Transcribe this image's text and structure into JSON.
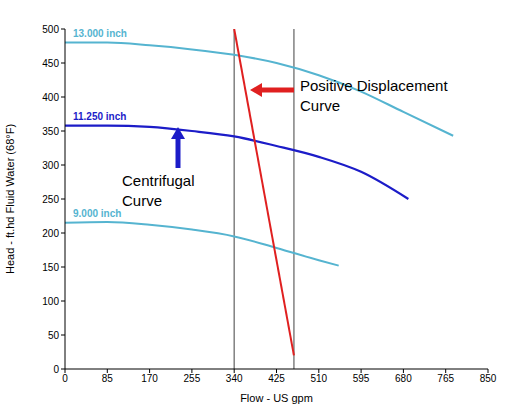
{
  "chart_data": {
    "type": "line",
    "x_label": "Flow - US gpm",
    "y_label": "Head - ft.hd Fluid Water (68°F)",
    "xlim": [
      0,
      850
    ],
    "xticks": [
      0,
      85,
      170,
      255,
      340,
      425,
      510,
      595,
      680,
      765,
      850
    ],
    "ylim": [
      0,
      500
    ],
    "yticks": [
      0,
      50,
      100,
      150,
      200,
      250,
      300,
      350,
      400,
      450,
      500
    ],
    "grid": false,
    "series": [
      {
        "name": "13.000 inch",
        "color": "#55b4d0",
        "x": [
          0,
          85,
          170,
          255,
          340,
          425,
          510,
          595,
          680,
          780
        ],
        "values": [
          480,
          480,
          476,
          470,
          462,
          450,
          432,
          408,
          378,
          343
        ]
      },
      {
        "name": "11.250 inch",
        "color": "#1c1cc8",
        "x": [
          0,
          85,
          170,
          255,
          340,
          425,
          510,
          595,
          690
        ],
        "values": [
          358,
          358,
          356,
          350,
          342,
          328,
          312,
          290,
          250
        ]
      },
      {
        "name": "9.000 inch",
        "color": "#55b4d0",
        "x": [
          0,
          85,
          170,
          255,
          340,
          425,
          510,
          550
        ],
        "values": [
          215,
          216,
          212,
          205,
          195,
          178,
          160,
          152
        ]
      },
      {
        "color": "#e02020",
        "x": [
          340,
          460
        ],
        "values": [
          500,
          20
        ]
      }
    ],
    "vlines": [
      340,
      460
    ],
    "annotations": [
      {
        "lines": [
          "Positive Displacement",
          "Curve"
        ],
        "color": "#e02020"
      },
      {
        "lines": [
          "Centrifugal",
          "Curve"
        ],
        "color": "#1c1cc8"
      }
    ]
  }
}
